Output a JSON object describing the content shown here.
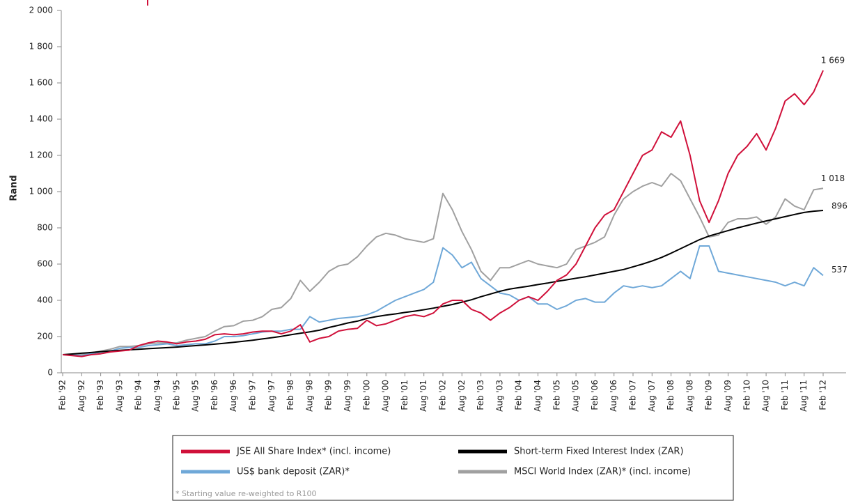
{
  "chart_data": {
    "type": "line",
    "y_label": "Rand",
    "ylim": [
      0,
      2000
    ],
    "yticks": [
      0,
      200,
      400,
      600,
      800,
      {
        "value": 1000,
        "label": "1 000"
      },
      {
        "value": 1200,
        "label": "1 200"
      },
      {
        "value": 1400,
        "label": "1 400"
      },
      {
        "value": 1600,
        "label": "1 600"
      },
      {
        "value": 1800,
        "label": "1 800"
      },
      {
        "value": 2000,
        "label": "2 000"
      }
    ],
    "categories": [
      "Feb '92",
      null,
      "Aug '92",
      null,
      "Feb '93",
      null,
      "Aug '93",
      null,
      "Feb '94",
      null,
      "Aug '94",
      null,
      "Feb '95",
      null,
      "Aug '95",
      null,
      "Feb '96",
      null,
      "Aug '96",
      null,
      "Feb '97",
      null,
      "Aug '97",
      null,
      "Feb '98",
      null,
      "Aug '98",
      null,
      "Feb '99",
      null,
      "Aug '99",
      null,
      "Feb '00",
      null,
      "Aug '00",
      null,
      "Feb '01",
      null,
      "Aug '01",
      null,
      "Feb '02",
      null,
      "Aug '02",
      null,
      "Feb '03",
      null,
      "Aug '03",
      null,
      "Feb '04",
      null,
      "Aug '04",
      null,
      "Feb '05",
      null,
      "Aug '05",
      null,
      "Feb '06",
      null,
      "Aug '06",
      null,
      "Feb '07",
      null,
      "Aug '07",
      null,
      "Feb '08",
      null,
      "Aug '08",
      null,
      "Feb '09",
      null,
      "Aug '09",
      null,
      "Feb '10",
      null,
      "Aug '10",
      null,
      "Feb '11",
      null,
      "Aug '11",
      null,
      "Feb '12"
    ],
    "series": [
      {
        "name": "JSE All Share Index* (incl. income)",
        "color": "#d0103a",
        "values": [
          100,
          95,
          90,
          100,
          105,
          115,
          120,
          125,
          150,
          165,
          175,
          170,
          160,
          170,
          175,
          185,
          210,
          215,
          210,
          215,
          225,
          230,
          230,
          215,
          230,
          265,
          170,
          190,
          200,
          230,
          240,
          245,
          290,
          260,
          270,
          290,
          310,
          320,
          310,
          330,
          380,
          400,
          400,
          350,
          330,
          290,
          330,
          360,
          400,
          420,
          400,
          450,
          510,
          540,
          600,
          700,
          800,
          870,
          900,
          1000,
          1100,
          1200,
          1230,
          1330,
          1300,
          1390,
          1200,
          950,
          830,
          950,
          1100,
          1200,
          1250,
          1320,
          1230,
          1350,
          1500,
          1540,
          1480,
          1550,
          1669
        ],
        "value_labels": [
          null,
          null,
          null,
          null,
          null,
          null,
          null,
          null,
          null,
          null,
          null,
          null,
          null,
          null,
          null,
          null,
          null,
          null,
          null,
          null,
          null,
          null,
          null,
          null,
          null,
          null,
          null,
          null,
          null,
          null,
          null,
          null,
          null,
          null,
          null,
          null,
          null,
          null,
          null,
          null,
          null,
          null,
          null,
          null,
          null,
          null,
          null,
          null,
          null,
          null,
          null,
          null,
          null,
          null,
          null,
          null,
          null,
          null,
          null,
          null,
          null,
          null,
          null,
          null,
          null,
          null,
          null,
          null,
          null,
          null,
          null,
          null,
          null,
          null,
          null,
          null,
          null,
          null,
          null,
          null,
          "1 669"
        ]
      },
      {
        "name": "Short-term Fixed Interest Index (ZAR)",
        "color": "#000000",
        "values": [
          100,
          104,
          108,
          112,
          116,
          120,
          124,
          127,
          130,
          133,
          136,
          139,
          142,
          146,
          150,
          154,
          158,
          163,
          168,
          174,
          180,
          187,
          194,
          201,
          210,
          218,
          226,
          235,
          250,
          262,
          275,
          285,
          300,
          310,
          318,
          325,
          333,
          340,
          348,
          357,
          367,
          377,
          390,
          403,
          420,
          435,
          450,
          462,
          470,
          478,
          487,
          495,
          505,
          513,
          522,
          530,
          540,
          550,
          560,
          570,
          585,
          600,
          617,
          637,
          660,
          685,
          710,
          735,
          755,
          770,
          785,
          800,
          813,
          826,
          838,
          850,
          862,
          874,
          885,
          892,
          896
        ]
      },
      {
        "name": "US$ bank deposit (ZAR)*",
        "color": "#6fa8d8",
        "values": [
          100,
          98,
          95,
          105,
          115,
          120,
          135,
          140,
          140,
          150,
          155,
          160,
          150,
          155,
          160,
          160,
          175,
          200,
          200,
          205,
          215,
          225,
          230,
          230,
          240,
          240,
          310,
          280,
          290,
          300,
          305,
          310,
          320,
          340,
          370,
          400,
          420,
          440,
          460,
          500,
          690,
          650,
          580,
          610,
          520,
          480,
          440,
          430,
          400,
          420,
          380,
          380,
          350,
          370,
          400,
          410,
          390,
          390,
          440,
          480,
          470,
          480,
          470,
          480,
          520,
          560,
          520,
          700,
          700,
          560,
          550,
          540,
          530,
          520,
          510,
          500,
          480,
          500,
          480,
          580,
          537
        ]
      },
      {
        "name": "MSCI World Index (ZAR)* (incl. income)",
        "color": "#a0a0a0",
        "values": [
          100,
          98,
          100,
          110,
          120,
          130,
          145,
          145,
          150,
          160,
          165,
          165,
          165,
          180,
          190,
          200,
          230,
          255,
          260,
          285,
          290,
          310,
          350,
          360,
          410,
          510,
          450,
          500,
          560,
          590,
          600,
          640,
          700,
          750,
          770,
          760,
          740,
          730,
          720,
          740,
          990,
          900,
          780,
          680,
          560,
          510,
          580,
          580,
          600,
          620,
          600,
          590,
          580,
          600,
          680,
          700,
          720,
          750,
          870,
          960,
          1000,
          1030,
          1050,
          1030,
          1100,
          1060,
          960,
          860,
          750,
          760,
          830,
          850,
          850,
          860,
          820,
          860,
          960,
          920,
          900,
          1010,
          1018
        ],
        "value_labels": [
          null,
          null,
          null,
          null,
          null,
          null,
          null,
          null,
          null,
          null,
          null,
          null,
          null,
          null,
          null,
          null,
          null,
          null,
          null,
          null,
          null,
          null,
          null,
          null,
          null,
          null,
          null,
          null,
          null,
          null,
          null,
          null,
          null,
          null,
          null,
          null,
          null,
          null,
          null,
          null,
          null,
          null,
          null,
          null,
          null,
          null,
          null,
          null,
          null,
          null,
          null,
          null,
          null,
          null,
          null,
          null,
          null,
          null,
          null,
          null,
          null,
          null,
          null,
          null,
          null,
          null,
          null,
          null,
          null,
          null,
          null,
          null,
          null,
          null,
          null,
          null,
          null,
          null,
          null,
          null,
          "1 018"
        ]
      }
    ],
    "short_rate_label": "896",
    "usd_label": "537",
    "footnote": "* Starting value re-weighted to R100"
  }
}
